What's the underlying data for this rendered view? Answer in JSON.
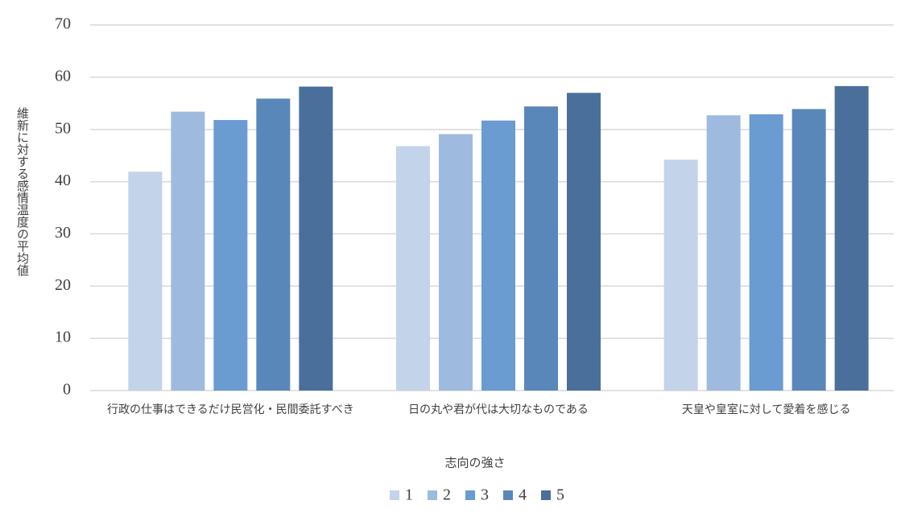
{
  "chart_data": {
    "type": "bar",
    "x_label": "志向の強さ",
    "y_label": "維新に対する感情温度の平均値",
    "categories": [
      "行政の仕事はできるだけ民営化・民間委託すべき",
      "日の丸や君が代は大切なものである",
      "天皇や皇室に対して愛着を感じる"
    ],
    "series": [
      {
        "name": "1",
        "color": "#c3d3ea",
        "values": [
          41.9,
          46.8,
          44.2
        ]
      },
      {
        "name": "2",
        "color": "#9fbadf",
        "values": [
          53.4,
          49.1,
          52.7
        ]
      },
      {
        "name": "3",
        "color": "#6a9bd1",
        "values": [
          51.8,
          51.7,
          52.9
        ]
      },
      {
        "name": "4",
        "color": "#5a87ba",
        "values": [
          55.9,
          54.4,
          53.9
        ]
      },
      {
        "name": "5",
        "color": "#4a6f9b",
        "values": [
          58.2,
          57.0,
          58.3
        ]
      }
    ],
    "ylim": [
      0,
      70
    ],
    "yticks": [
      0,
      10,
      20,
      30,
      40,
      50,
      60,
      70
    ],
    "grid": true,
    "legend": "bottom"
  }
}
